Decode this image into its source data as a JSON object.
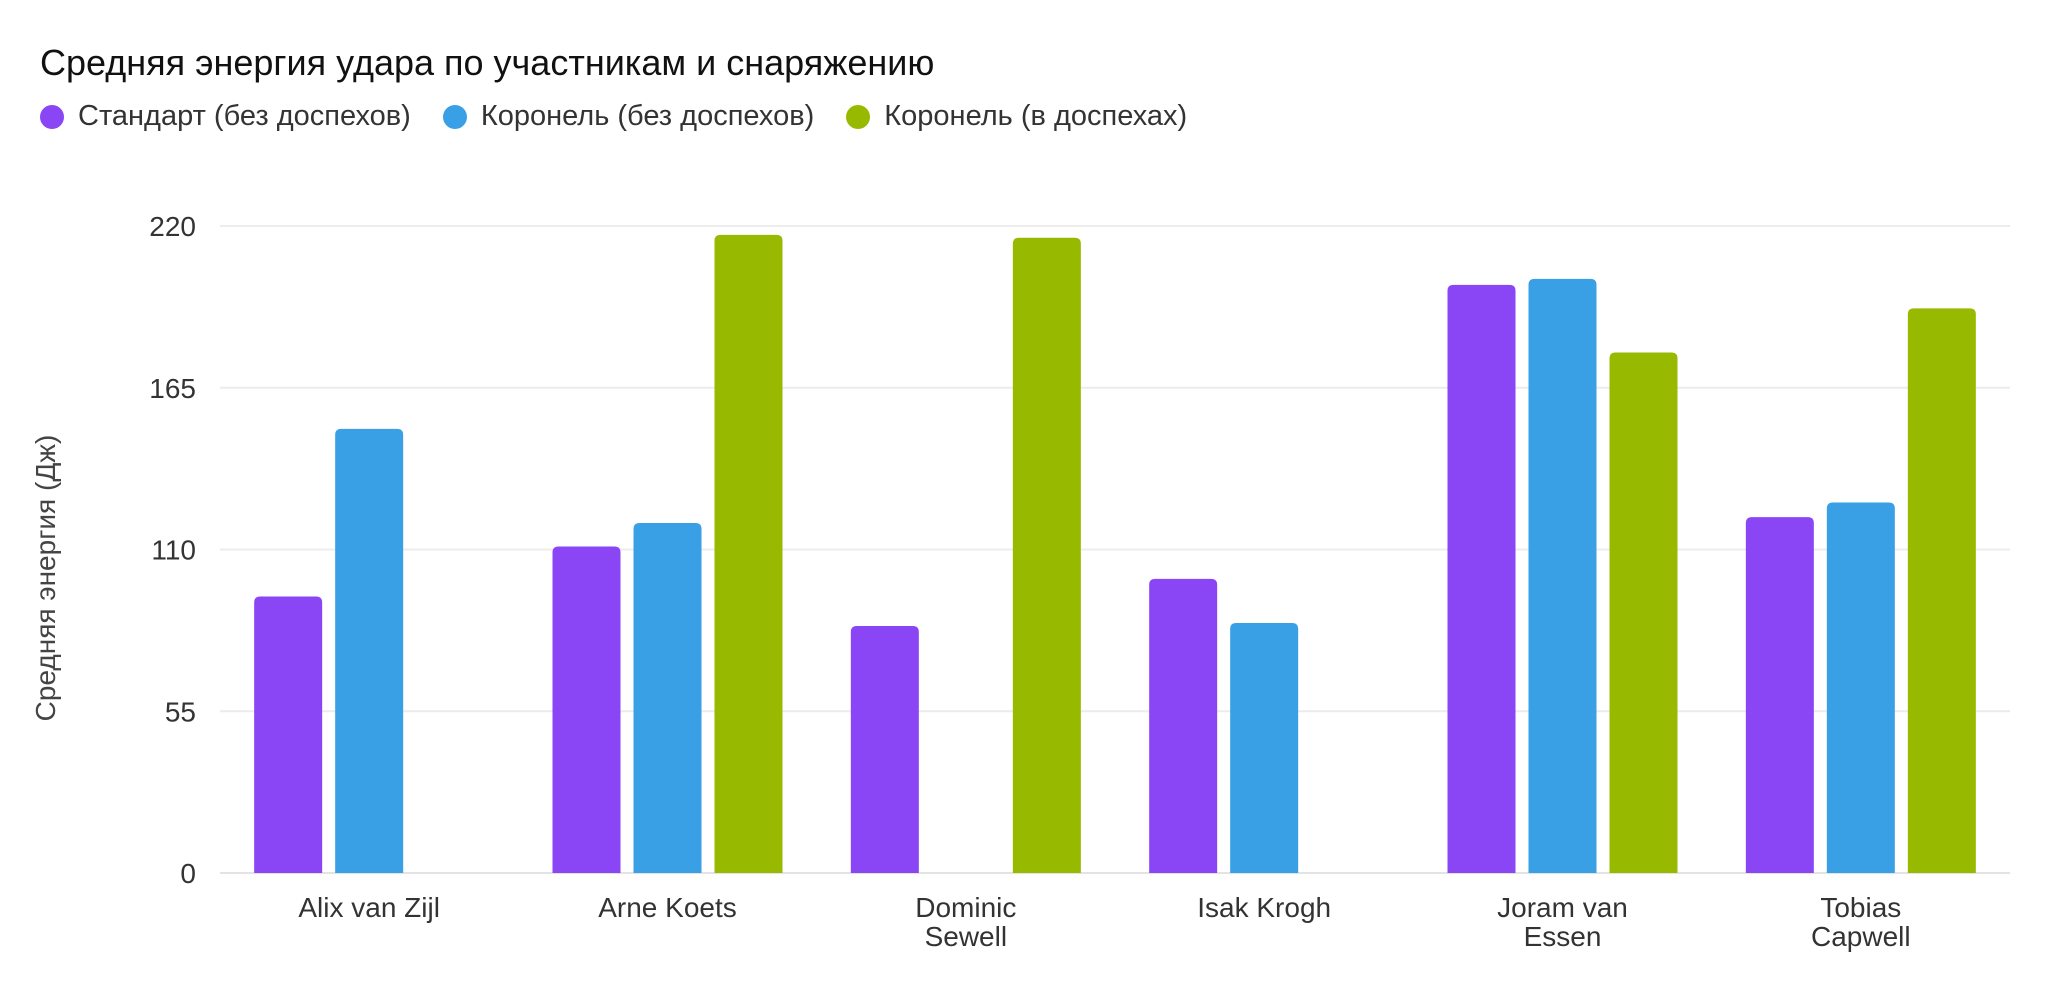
{
  "chart_data": {
    "type": "bar",
    "title": "Средняя энергия удара по участникам и снаряжению",
    "ylabel": "Средняя энергия (Дж)",
    "xlabel": "",
    "ylim": [
      0,
      220
    ],
    "yticks": [
      0,
      55,
      110,
      165,
      220
    ],
    "grid": true,
    "legend_position": "top-left",
    "categories": [
      [
        "Alix van Zijl"
      ],
      [
        "Arne Koets"
      ],
      [
        "Dominic",
        "Sewell"
      ],
      [
        "Isak Krogh"
      ],
      [
        "Joram van",
        "Essen"
      ],
      [
        "Tobias",
        "Capwell"
      ]
    ],
    "series": [
      {
        "name": "Стандарт (без доспехов)",
        "color": "#8a45f5",
        "values": [
          94,
          111,
          84,
          100,
          200,
          121
        ]
      },
      {
        "name": "Коронель (без доспехов)",
        "color": "#3aa0e6",
        "values": [
          151,
          119,
          null,
          85,
          202,
          126
        ]
      },
      {
        "name": "Коронель (в доспехах)",
        "color": "#97ba00",
        "values": [
          null,
          217,
          216,
          null,
          177,
          192
        ]
      }
    ]
  }
}
